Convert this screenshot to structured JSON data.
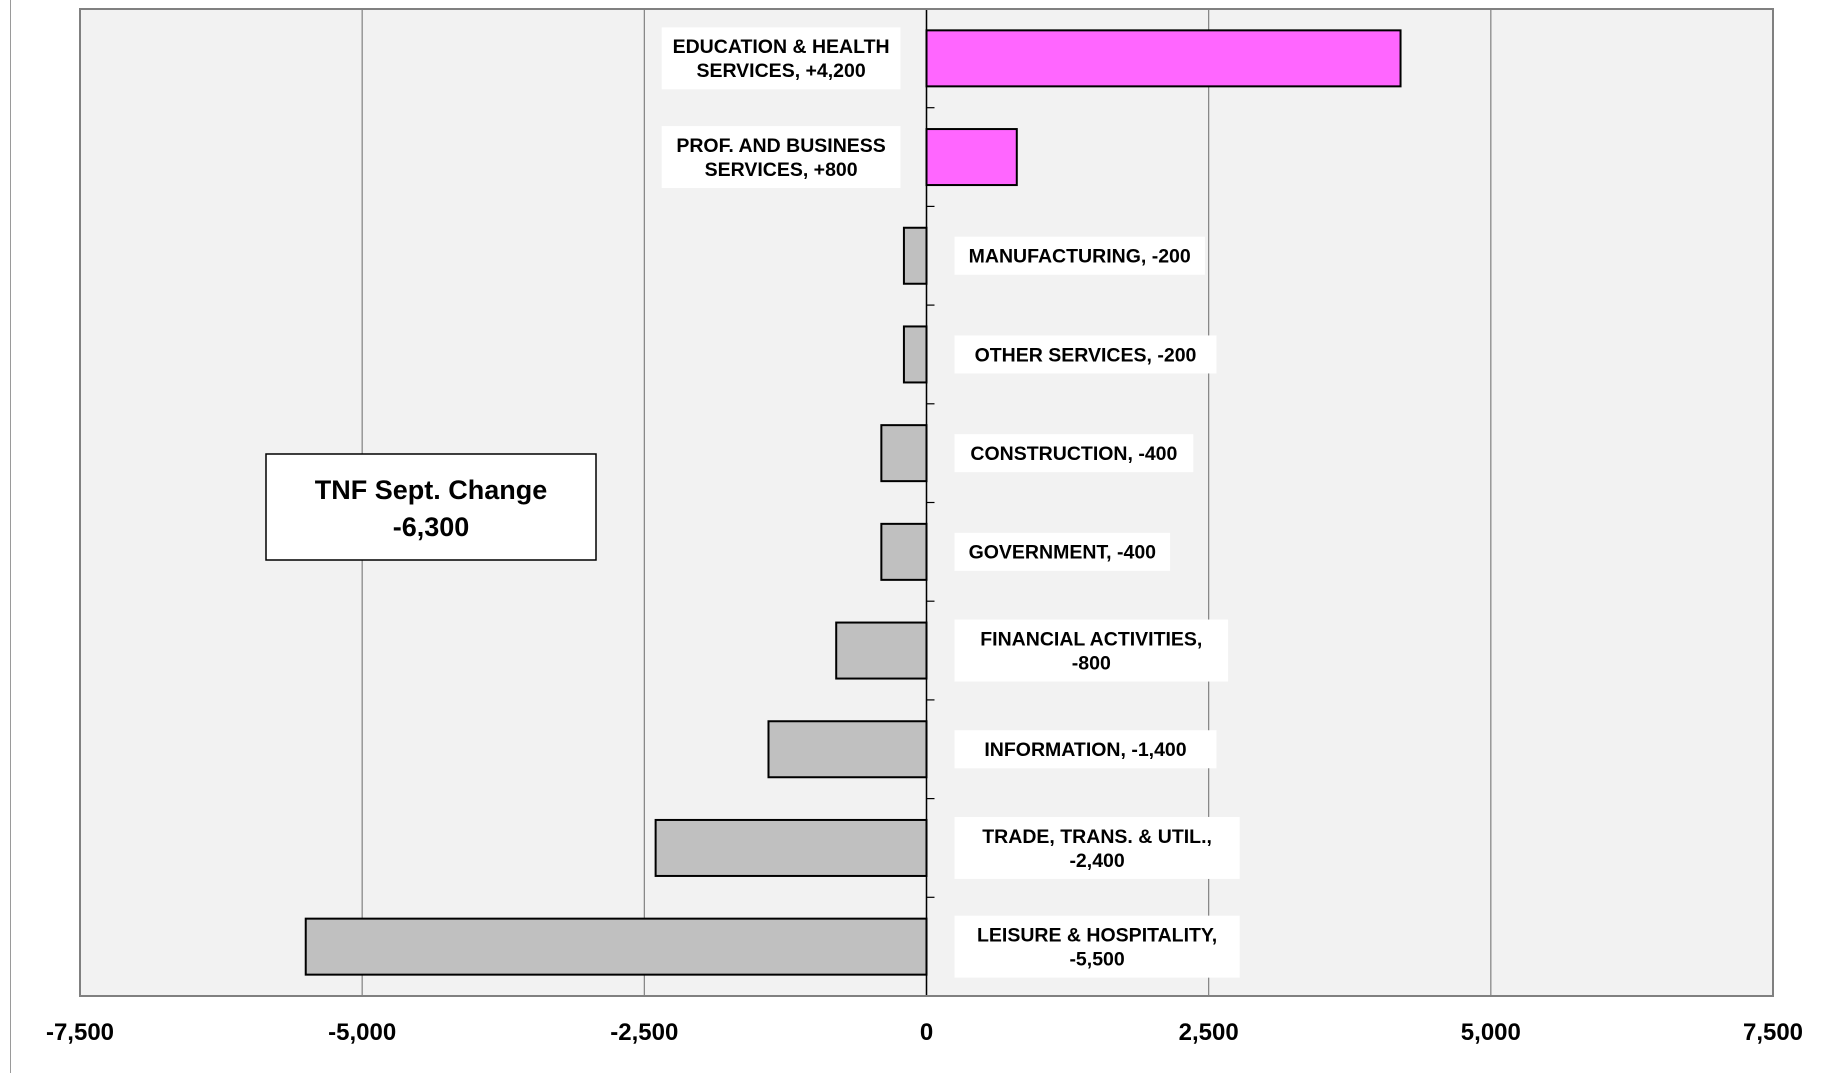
{
  "chart_data": {
    "type": "bar",
    "orientation": "horizontal",
    "categories": [
      "EDUCATION & HEALTH SERVICES, +4,200",
      "PROF. AND BUSINESS SERVICES, +800",
      "MANUFACTURING, -200",
      "OTHER SERVICES, -200",
      "CONSTRUCTION, -400",
      "GOVERNMENT, -400",
      "FINANCIAL ACTIVITIES, -800",
      "INFORMATION,  -1,400",
      "TRADE, TRANS. & UTIL., -2,400",
      "LEISURE & HOSPITALITY, -5,500"
    ],
    "values": [
      4200,
      800,
      -200,
      -200,
      -400,
      -400,
      -800,
      -1400,
      -2400,
      -5500
    ],
    "xlim": [
      -7500,
      7500
    ],
    "xticks": [
      -7500,
      -5000,
      -2500,
      0,
      2500,
      5000,
      7500
    ],
    "xtick_labels": [
      "-7,500",
      "-5,000",
      "-2,500",
      "0",
      "2,500",
      "5,000",
      "7,500"
    ],
    "grid": "vertical",
    "colors": {
      "positive": "#ff66ff",
      "negative": "#c0c0c0",
      "plot_bg": "#f2f2f2"
    },
    "title": "",
    "xlabel": "",
    "ylabel": "",
    "annotation": {
      "line1": "TNF Sept. Change",
      "line2": "-6,300"
    }
  },
  "bar_labels": [
    {
      "lines": [
        "EDUCATION & HEALTH",
        "SERVICES, +4,200"
      ]
    },
    {
      "lines": [
        "PROF. AND BUSINESS",
        "SERVICES, +800"
      ]
    },
    {
      "lines": [
        "MANUFACTURING, -200"
      ]
    },
    {
      "lines": [
        "OTHER SERVICES, -200"
      ]
    },
    {
      "lines": [
        "CONSTRUCTION, -400"
      ]
    },
    {
      "lines": [
        "GOVERNMENT, -400"
      ]
    },
    {
      "lines": [
        "FINANCIAL ACTIVITIES,",
        "-800"
      ]
    },
    {
      "lines": [
        "INFORMATION,  -1,400"
      ]
    },
    {
      "lines": [
        "TRADE, TRANS. & UTIL.,",
        "-2,400"
      ]
    },
    {
      "lines": [
        "LEISURE & HOSPITALITY,",
        "-5,500"
      ]
    }
  ]
}
